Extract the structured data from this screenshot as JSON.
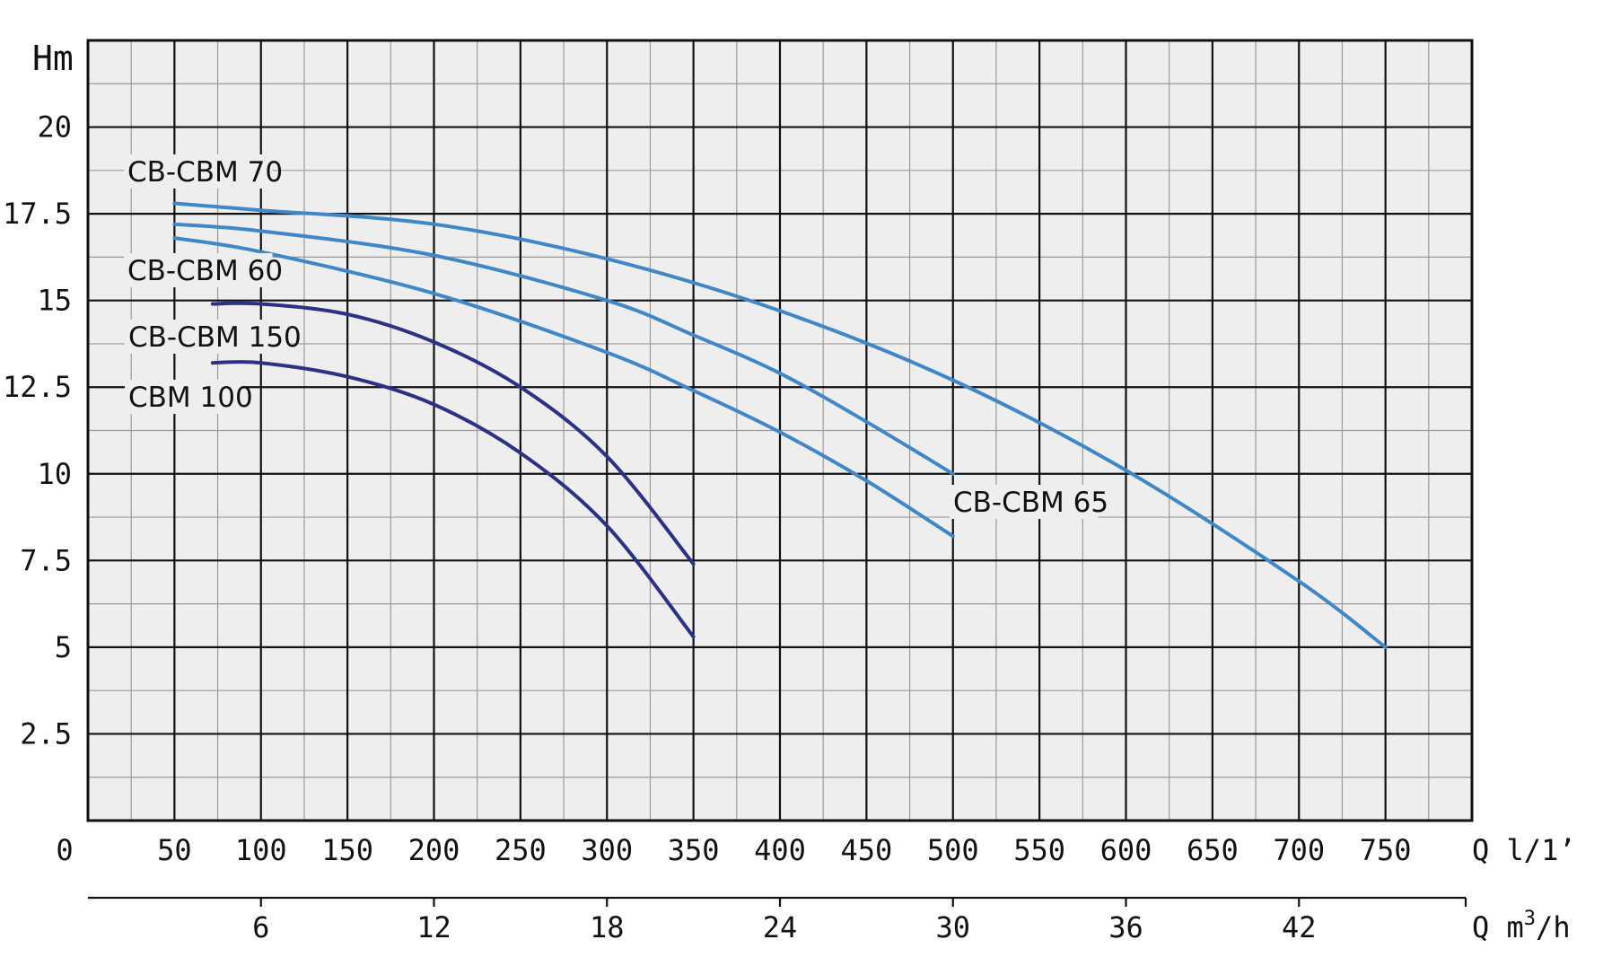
{
  "chart_data": {
    "type": "line",
    "y_unit": "Hm",
    "x_unit_primary": "Q l/1’",
    "x_unit_secondary_prefix": "Q m",
    "x_unit_secondary_sup": "3",
    "x_unit_secondary_suffix": "/h",
    "xlim": [
      0,
      800
    ],
    "ylim": [
      0,
      22.5
    ],
    "grid": true,
    "x_ticks": [
      "0",
      "50",
      "100",
      "150",
      "200",
      "250",
      "300",
      "350",
      "400",
      "450",
      "500",
      "550",
      "600",
      "650",
      "700",
      "750"
    ],
    "y_ticks": [
      "2.5",
      "5",
      "7.5",
      "10",
      "12.5",
      "15",
      "17.5",
      "20"
    ],
    "x2_ticks": [
      "6",
      "12",
      "18",
      "24",
      "30",
      "36",
      "42"
    ],
    "colors": {
      "plot_background": "#eeeeee",
      "minor_grid": "#9a9a9a",
      "major_grid": "#111111",
      "light_blue": "#3f87c9",
      "dark_blue": "#2b3185"
    },
    "series": [
      {
        "name": "CB-CBM 70",
        "color": "#3f87c9",
        "x": [
          50,
          100,
          200,
          300,
          400,
          500,
          600,
          700,
          750
        ],
        "y": [
          17.8,
          17.6,
          17.2,
          16.2,
          14.7,
          12.7,
          10.1,
          6.9,
          5.0
        ]
      },
      {
        "name": "CB-CBM 65",
        "color": "#3f87c9",
        "x": [
          50,
          100,
          200,
          300,
          350,
          400,
          450,
          500
        ],
        "y": [
          17.2,
          17.0,
          16.3,
          15.0,
          14.0,
          12.9,
          11.5,
          10.0
        ]
      },
      {
        "name": "CB-CBM 60",
        "color": "#3f87c9",
        "x": [
          50,
          100,
          200,
          300,
          350,
          400,
          450,
          500
        ],
        "y": [
          16.8,
          16.4,
          15.2,
          13.5,
          12.4,
          11.2,
          9.8,
          8.2
        ]
      },
      {
        "name": "CB-CBM 150",
        "color": "#2b3185",
        "x": [
          72,
          100,
          150,
          200,
          250,
          300,
          350
        ],
        "y": [
          14.9,
          14.9,
          14.6,
          13.8,
          12.5,
          10.5,
          7.4
        ]
      },
      {
        "name": "CBM 100",
        "color": "#2b3185",
        "x": [
          72,
          100,
          150,
          200,
          250,
          300,
          350
        ],
        "y": [
          13.2,
          13.2,
          12.8,
          12.0,
          10.6,
          8.5,
          5.3
        ]
      }
    ]
  }
}
